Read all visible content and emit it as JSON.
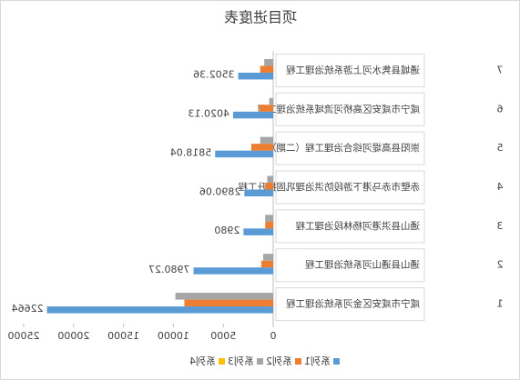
{
  "chart_data": {
    "type": "bar",
    "orientation": "horizontal",
    "title": "项目进度表",
    "row_numbers": [
      "1",
      "2",
      "3",
      "4",
      "5",
      "6",
      "7"
    ],
    "categories": [
      "咸宁市咸安区金河系统治理工程",
      "通山县通山河系统治理工程",
      "通山县洪港河杨林段治理工程",
      "赤壁市赤马港下游段防洪治理巩固提升工程",
      "崇阳县高堤河综合治理工程（二期）",
      "咸宁市咸安区高桥河流域系统治理工程",
      "通城县隽水河上游系统治理工程"
    ],
    "series": [
      {
        "name": "系列1",
        "color": "#5b9bd5",
        "values": [
          22664,
          7980.27,
          2980,
          2890.06,
          5818.04,
          4020.13,
          3502.36
        ]
      },
      {
        "name": "系列2",
        "color": "#ed7d31",
        "values": [
          8900,
          1200,
          800,
          800,
          2200,
          1400,
          1300
        ]
      },
      {
        "name": "系列3",
        "color": "#a5a5a5",
        "values": [
          9800,
          1000,
          800,
          600,
          1300,
          400,
          900
        ]
      },
      {
        "name": "系列4",
        "color": "#ffc000",
        "values": [
          0,
          0,
          0,
          0,
          0,
          0,
          0
        ]
      }
    ],
    "xlim": [
      0,
      25000
    ],
    "xticks": [
      0,
      5000,
      10000,
      15000,
      20000,
      25000
    ]
  }
}
